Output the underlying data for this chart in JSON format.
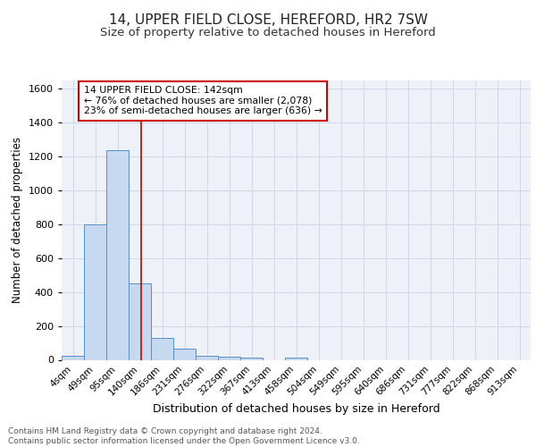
{
  "title1": "14, UPPER FIELD CLOSE, HEREFORD, HR2 7SW",
  "title2": "Size of property relative to detached houses in Hereford",
  "xlabel": "Distribution of detached houses by size in Hereford",
  "ylabel": "Number of detached properties",
  "bin_labels": [
    "4sqm",
    "49sqm",
    "95sqm",
    "140sqm",
    "186sqm",
    "231sqm",
    "276sqm",
    "322sqm",
    "367sqm",
    "413sqm",
    "458sqm",
    "504sqm",
    "549sqm",
    "595sqm",
    "640sqm",
    "686sqm",
    "731sqm",
    "777sqm",
    "822sqm",
    "868sqm",
    "913sqm"
  ],
  "bar_values": [
    25,
    800,
    1240,
    450,
    130,
    65,
    25,
    20,
    15,
    0,
    15,
    0,
    0,
    0,
    0,
    0,
    0,
    0,
    0,
    0,
    0
  ],
  "bar_color": "#c6d9f0",
  "bar_edge_color": "#5a8fc3",
  "grid_color": "#d0d8e8",
  "background_color": "#eef2f8",
  "vline_color": "#cc0000",
  "annotation_text": "14 UPPER FIELD CLOSE: 142sqm\n← 76% of detached houses are smaller (2,078)\n23% of semi-detached houses are larger (636) →",
  "annotation_box_color": "#cc0000",
  "ylim": [
    0,
    1650
  ],
  "yticks": [
    0,
    200,
    400,
    600,
    800,
    1000,
    1200,
    1400,
    1600
  ],
  "footer_text": "Contains HM Land Registry data © Crown copyright and database right 2024.\nContains public sector information licensed under the Open Government Licence v3.0.",
  "title1_fontsize": 11,
  "title2_fontsize": 9.5,
  "xlabel_fontsize": 9,
  "ylabel_fontsize": 8.5,
  "footer_fontsize": 6.5,
  "tick_fontsize": 7.5,
  "ytick_fontsize": 8
}
